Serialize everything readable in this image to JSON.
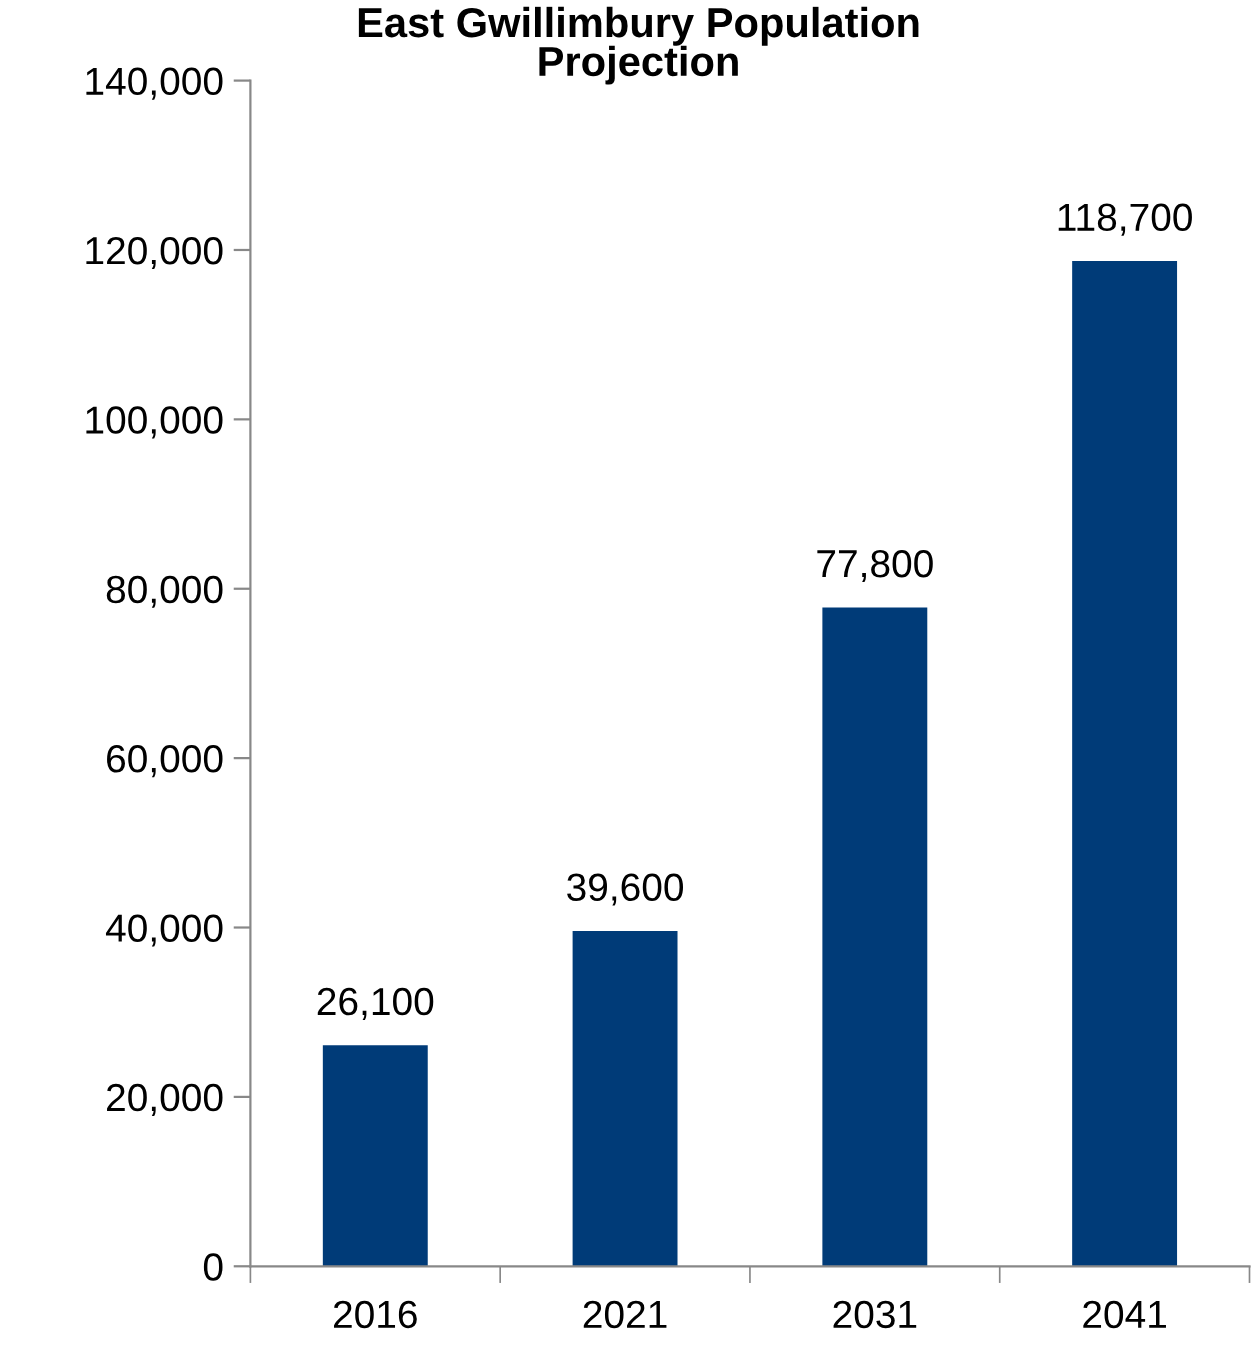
{
  "chart_data": {
    "type": "bar",
    "title": "East Gwillimbury Population\nProjection",
    "categories": [
      "2016",
      "2021",
      "2031",
      "2041"
    ],
    "values": [
      26100,
      39600,
      77800,
      118700
    ],
    "color": "#003b78",
    "ylim": [
      0,
      140000
    ],
    "yticks": [
      {
        "value": 0,
        "label": "0"
      },
      {
        "value": 20000,
        "label": "20,000"
      },
      {
        "value": 40000,
        "label": "40,000"
      },
      {
        "value": 60000,
        "label": "60,000"
      },
      {
        "value": 80000,
        "label": "80,000"
      },
      {
        "value": 100000,
        "label": "100,000"
      },
      {
        "value": 120000,
        "label": "120,000"
      },
      {
        "value": 140000,
        "label": "140,000"
      }
    ],
    "value_labels": [
      "26,100",
      "39,600",
      "77,800",
      "118,700"
    ],
    "grid": false,
    "legend": false
  }
}
